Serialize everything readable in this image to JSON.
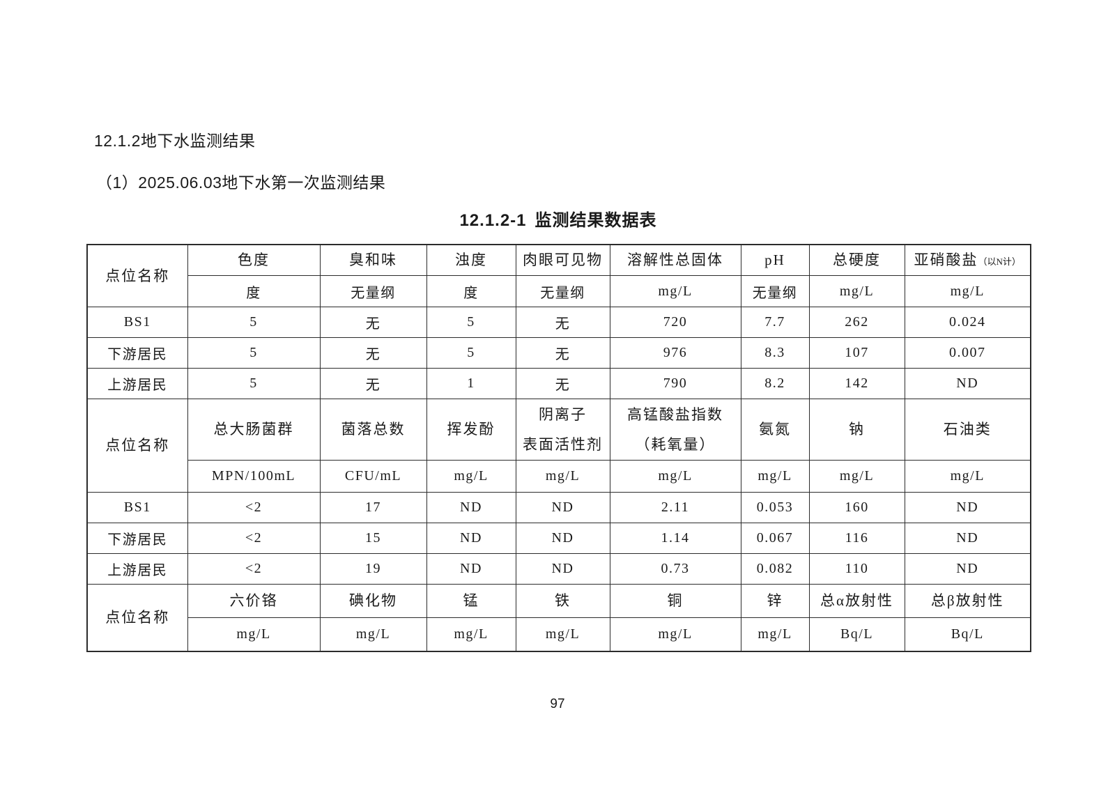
{
  "document": {
    "heading1": "12.1.2地下水监测结果",
    "heading2": "（1）2025.06.03地下水第一次监测结果",
    "table_title_number": "12.1.2-1",
    "table_title_text": "监测结果数据表",
    "page_number": "97"
  },
  "table": {
    "sections": [
      {
        "label": "点位名称",
        "params": [
          {
            "text": "色度"
          },
          {
            "text": "臭和味"
          },
          {
            "text": "浊度"
          },
          {
            "text": "肉眼可见物"
          },
          {
            "text": "溶解性总固体"
          },
          {
            "text": "pH"
          },
          {
            "text": "总硬度"
          },
          {
            "text": "亚硝酸盐",
            "note": "（以N计）"
          }
        ],
        "units": [
          "度",
          "无量纲",
          "度",
          "无量纲",
          "mg/L",
          "无量纲",
          "mg/L",
          "mg/L"
        ],
        "rows": [
          {
            "name": "BS1",
            "values": [
              "5",
              "无",
              "5",
              "无",
              "720",
              "7.7",
              "262",
              "0.024"
            ]
          },
          {
            "name": "下游居民",
            "values": [
              "5",
              "无",
              "5",
              "无",
              "976",
              "8.3",
              "107",
              "0.007"
            ]
          },
          {
            "name": "上游居民",
            "values": [
              "5",
              "无",
              "1",
              "无",
              "790",
              "8.2",
              "142",
              "ND"
            ]
          }
        ]
      },
      {
        "label": "点位名称",
        "params": [
          {
            "text": "总大肠菌群"
          },
          {
            "text": "菌落总数"
          },
          {
            "text": "挥发酚"
          },
          {
            "text": "阴离子\n表面活性剂"
          },
          {
            "text": "高锰酸盐指数\n（耗氧量）"
          },
          {
            "text": "氨氮"
          },
          {
            "text": "钠"
          },
          {
            "text": "石油类"
          }
        ],
        "units": [
          "MPN/100mL",
          "CFU/mL",
          "mg/L",
          "mg/L",
          "mg/L",
          "mg/L",
          "mg/L",
          "mg/L"
        ],
        "rows": [
          {
            "name": "BS1",
            "values": [
              "<2",
              "17",
              "ND",
              "ND",
              "2.11",
              "0.053",
              "160",
              "ND"
            ]
          },
          {
            "name": "下游居民",
            "values": [
              "<2",
              "15",
              "ND",
              "ND",
              "1.14",
              "0.067",
              "116",
              "ND"
            ]
          },
          {
            "name": "上游居民",
            "values": [
              "<2",
              "19",
              "ND",
              "ND",
              "0.73",
              "0.082",
              "110",
              "ND"
            ]
          }
        ]
      },
      {
        "label": "点位名称",
        "params": [
          {
            "text": "六价铬"
          },
          {
            "text": "碘化物"
          },
          {
            "text": "锰"
          },
          {
            "text": "铁"
          },
          {
            "text": "铜"
          },
          {
            "text": "锌"
          },
          {
            "text": "总α放射性"
          },
          {
            "text": "总β放射性"
          }
        ],
        "units": [
          "mg/L",
          "mg/L",
          "mg/L",
          "mg/L",
          "mg/L",
          "mg/L",
          "Bq/L",
          "Bq/L"
        ],
        "rows": []
      }
    ]
  },
  "colors": {
    "background": "#ffffff",
    "text": "#1a1a1a",
    "table_border": "#2b2b2b"
  }
}
